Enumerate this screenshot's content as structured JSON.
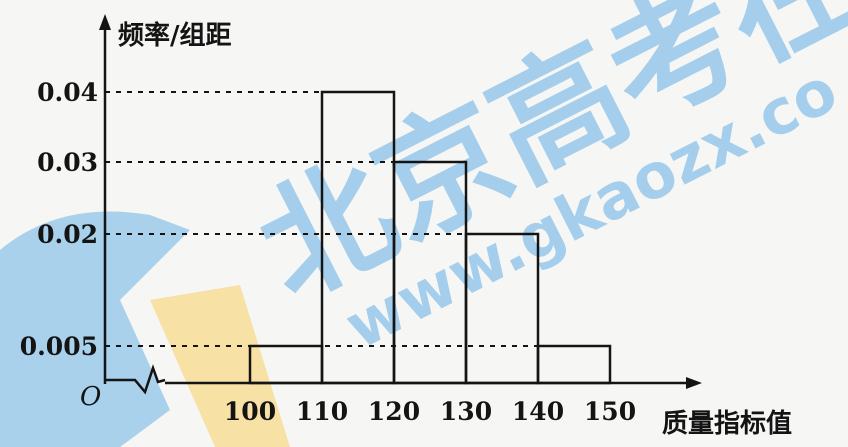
{
  "chart_data": {
    "type": "bar",
    "subtype": "histogram",
    "bins": [
      {
        "from": 100,
        "to": 110,
        "value": 0.005
      },
      {
        "from": 110,
        "to": 120,
        "value": 0.04
      },
      {
        "from": 120,
        "to": 130,
        "value": 0.03
      },
      {
        "from": 130,
        "to": 140,
        "value": 0.02
      },
      {
        "from": 140,
        "to": 150,
        "value": 0.005
      }
    ],
    "x_ticks": [
      "100",
      "110",
      "120",
      "130",
      "140",
      "150"
    ],
    "y_ticks": [
      {
        "value": 0.005,
        "label": "0.005"
      },
      {
        "value": 0.02,
        "label": "0.02"
      },
      {
        "value": 0.03,
        "label": "0.03"
      },
      {
        "value": 0.04,
        "label": "0.04"
      }
    ],
    "origin_label": "O",
    "xlabel": "质量指标值",
    "ylabel": "频率/组距",
    "grid": "dashed reference lines at labeled y values",
    "axis_break": "zigzag on x-axis between 0 and 100"
  },
  "watermark": {
    "main_text": "北京高考在",
    "url_text": "www.gkaozx.co",
    "colors": {
      "blue": "#8fc4ea",
      "orange": "#f7d98a"
    }
  },
  "colors": {
    "ink": "#141414",
    "background": "#f6f6f4"
  }
}
